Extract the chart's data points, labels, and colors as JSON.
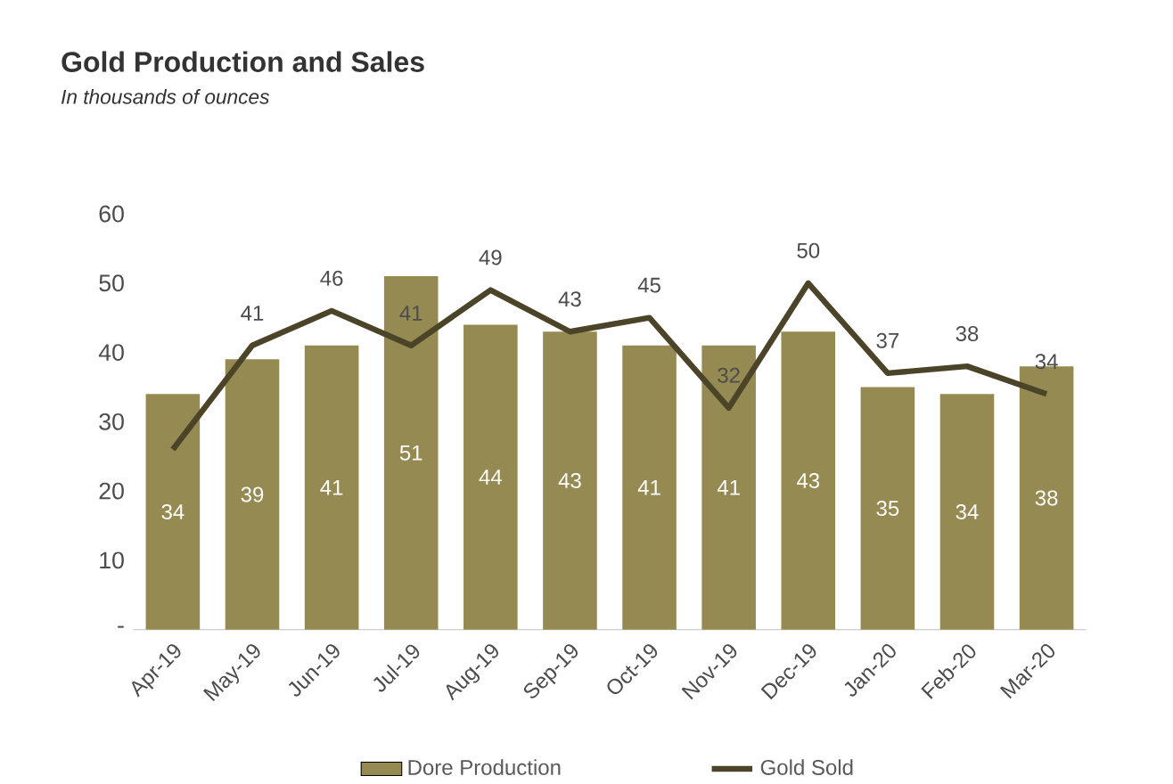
{
  "chart_data": {
    "type": "bar",
    "title": "Gold Production and Sales",
    "subtitle": "In thousands of ounces",
    "categories": [
      "Apr-19",
      "May-19",
      "Jun-19",
      "Jul-19",
      "Aug-19",
      "Sep-19",
      "Oct-19",
      "Nov-19",
      "Dec-19",
      "Jan-20",
      "Feb-20",
      "Mar-20"
    ],
    "series": [
      {
        "name": "Dore Production",
        "color": "#958b52",
        "values": [
          34,
          39,
          41,
          51,
          44,
          43,
          41,
          41,
          43,
          35,
          34,
          38
        ],
        "value_labels": [
          "34",
          "39",
          "41",
          "51",
          "44",
          "43",
          "41",
          "41",
          "43",
          "35",
          "34",
          "38"
        ]
      },
      {
        "name": "Gold Sold",
        "type": "line",
        "color": "#4b4428",
        "values": [
          26,
          41,
          46,
          41,
          49,
          43,
          45,
          32,
          50,
          37,
          38,
          34
        ],
        "value_labels": [
          null,
          "41",
          "46",
          "41",
          "49",
          "43",
          "45",
          "32",
          "50",
          "37",
          "38",
          "34"
        ]
      }
    ],
    "ylim": [
      0,
      60
    ],
    "yticks": [
      {
        "value": 0,
        "label": "-"
      },
      10,
      20,
      30,
      40,
      50,
      60
    ],
    "legend": "bottom"
  }
}
